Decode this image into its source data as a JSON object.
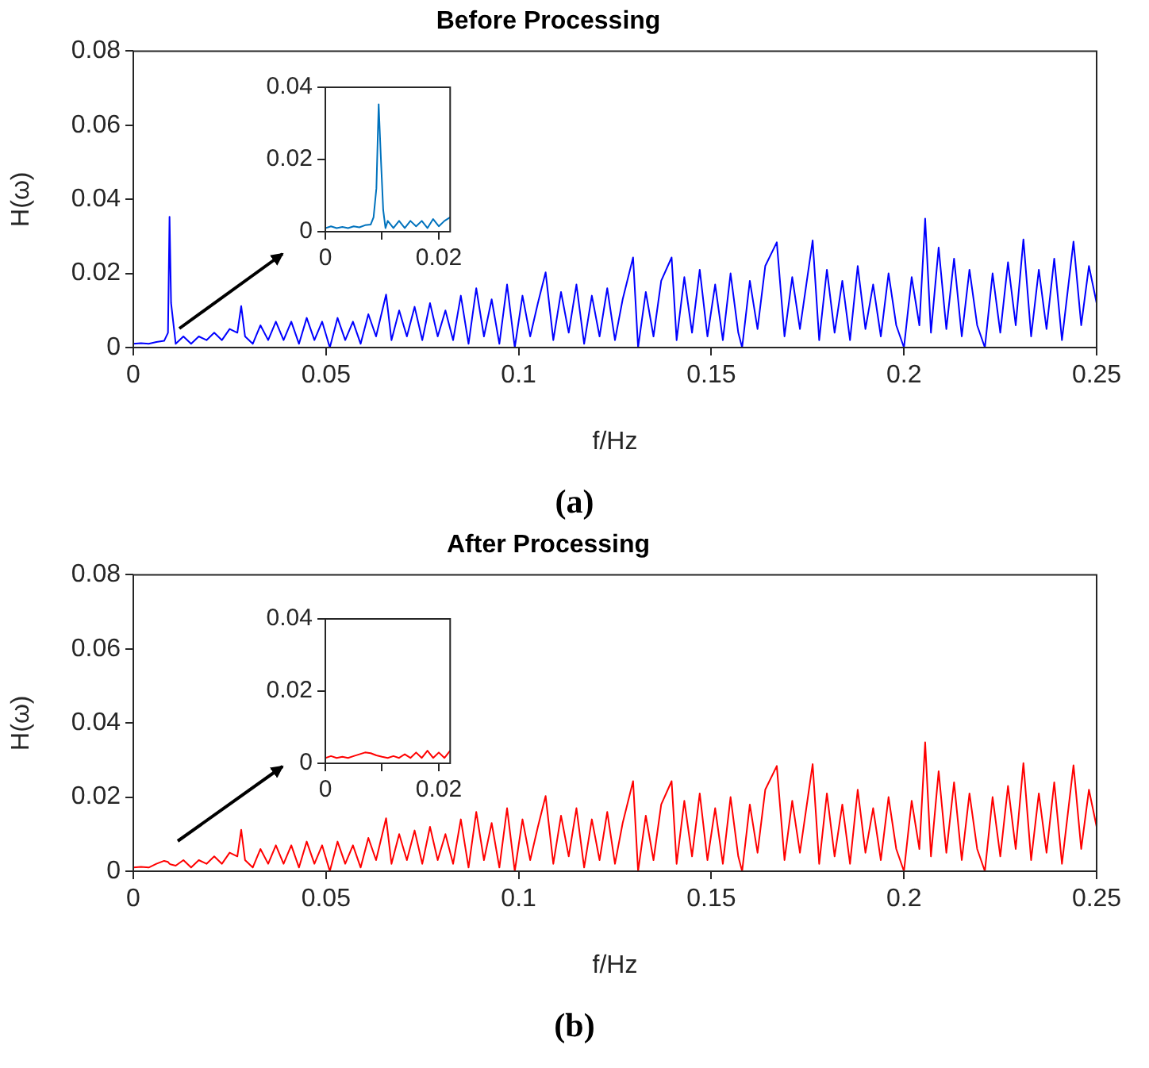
{
  "chart_data": [
    {
      "type": "line",
      "title": "Before Processing",
      "xlabel": "f/Hz",
      "ylabel": "H(ω)",
      "annotations": [
        "(a)"
      ],
      "xlim": [
        0,
        0.25
      ],
      "ylim": [
        0,
        0.08
      ],
      "xticks": [
        0,
        0.05,
        0.1,
        0.15,
        0.2,
        0.25
      ],
      "yticks": [
        0,
        0.02,
        0.04,
        0.06,
        0.08
      ],
      "x": [
        0,
        0.002,
        0.004,
        0.006,
        0.008,
        0.009,
        0.0094,
        0.0098,
        0.011,
        0.013,
        0.015,
        0.017,
        0.019,
        0.021,
        0.023,
        0.025,
        0.027,
        0.028,
        0.029,
        0.031,
        0.033,
        0.035,
        0.037,
        0.039,
        0.041,
        0.043,
        0.045,
        0.047,
        0.049,
        0.051,
        0.053,
        0.055,
        0.057,
        0.059,
        0.061,
        0.063,
        0.0656,
        0.067,
        0.069,
        0.071,
        0.073,
        0.075,
        0.077,
        0.079,
        0.081,
        0.083,
        0.085,
        0.087,
        0.089,
        0.091,
        0.093,
        0.095,
        0.097,
        0.099,
        0.101,
        0.103,
        0.105,
        0.107,
        0.109,
        0.111,
        0.113,
        0.115,
        0.117,
        0.119,
        0.121,
        0.123,
        0.125,
        0.127,
        0.1297,
        0.131,
        0.133,
        0.135,
        0.137,
        0.1397,
        0.141,
        0.143,
        0.145,
        0.147,
        0.149,
        0.151,
        0.153,
        0.155,
        0.157,
        0.158,
        0.16,
        0.162,
        0.164,
        0.167,
        0.169,
        0.171,
        0.173,
        0.1763,
        0.178,
        0.18,
        0.182,
        0.184,
        0.186,
        0.188,
        0.19,
        0.192,
        0.194,
        0.196,
        0.198,
        0.2,
        0.202,
        0.204,
        0.2055,
        0.207,
        0.209,
        0.211,
        0.213,
        0.215,
        0.217,
        0.219,
        0.221,
        0.223,
        0.225,
        0.227,
        0.229,
        0.231,
        0.233,
        0.235,
        0.237,
        0.239,
        0.241,
        0.244,
        0.246,
        0.248,
        0.249,
        0.25
      ],
      "series": [
        {
          "color": "#0000ff",
          "values": [
            0.001,
            0.0012,
            0.001,
            0.0015,
            0.0018,
            0.004,
            0.0353,
            0.012,
            0.001,
            0.003,
            0.001,
            0.003,
            0.002,
            0.004,
            0.002,
            0.005,
            0.004,
            0.0112,
            0.003,
            0.001,
            0.006,
            0.002,
            0.007,
            0.002,
            0.007,
            0.001,
            0.008,
            0.002,
            0.007,
            0,
            0.008,
            0.002,
            0.007,
            0.001,
            0.009,
            0.003,
            0.0143,
            0.002,
            0.01,
            0.003,
            0.011,
            0.002,
            0.012,
            0.003,
            0.01,
            0.002,
            0.014,
            0.001,
            0.016,
            0.003,
            0.013,
            0.001,
            0.017,
            0,
            0.014,
            0.003,
            0.012,
            0.0203,
            0.002,
            0.015,
            0.004,
            0.017,
            0.001,
            0.014,
            0.003,
            0.016,
            0.002,
            0.013,
            0.0243,
            0,
            0.015,
            0.003,
            0.018,
            0.0243,
            0.002,
            0.019,
            0.004,
            0.021,
            0.003,
            0.017,
            0.002,
            0.02,
            0.004,
            0,
            0.018,
            0.005,
            0.022,
            0.0284,
            0.003,
            0.019,
            0.005,
            0.0289,
            0.002,
            0.021,
            0.004,
            0.018,
            0.002,
            0.022,
            0.005,
            0.017,
            0.003,
            0.02,
            0.006,
            0,
            0.019,
            0.006,
            0.0348,
            0.004,
            0.027,
            0.005,
            0.024,
            0.003,
            0.021,
            0.006,
            0,
            0.02,
            0.004,
            0.023,
            0.006,
            0.0292,
            0.003,
            0.021,
            0.005,
            0.024,
            0.002,
            0.0286,
            0.006,
            0.022,
            0.017,
            0.012
          ]
        }
      ]
    },
    {
      "type": "line",
      "xlim": [
        0,
        0.022
      ],
      "ylim": [
        0,
        0.04
      ],
      "xticks": [
        0,
        {
          "value": 0.01,
          "label": null
        },
        0.02
      ],
      "yticks": [
        0,
        0.02,
        0.04
      ],
      "x": [
        0,
        0.001,
        0.002,
        0.003,
        0.004,
        0.005,
        0.006,
        0.007,
        0.008,
        0.0085,
        0.009,
        0.0094,
        0.0098,
        0.0102,
        0.0106,
        0.011,
        0.012,
        0.013,
        0.014,
        0.015,
        0.016,
        0.017,
        0.018,
        0.019,
        0.02,
        0.021,
        0.022
      ],
      "series": [
        {
          "color": "#0072bd",
          "values": [
            0.001,
            0.0015,
            0.001,
            0.0013,
            0.001,
            0.0015,
            0.0012,
            0.0018,
            0.002,
            0.004,
            0.012,
            0.0353,
            0.02,
            0.006,
            0.001,
            0.003,
            0.001,
            0.003,
            0.001,
            0.003,
            0.0015,
            0.003,
            0.001,
            0.0035,
            0.0015,
            0.003,
            0.004
          ]
        }
      ]
    },
    {
      "type": "line",
      "title": "After Processing",
      "xlabel": "f/Hz",
      "ylabel": "H(ω)",
      "annotations": [
        "(b)"
      ],
      "xlim": [
        0,
        0.25
      ],
      "ylim": [
        0,
        0.08
      ],
      "xticks": [
        0,
        0.05,
        0.1,
        0.15,
        0.2,
        0.25
      ],
      "yticks": [
        0,
        0.02,
        0.04,
        0.06,
        0.08
      ],
      "x": [
        0,
        0.002,
        0.004,
        0.006,
        0.008,
        0.009,
        0.0094,
        0.0098,
        0.011,
        0.013,
        0.015,
        0.017,
        0.019,
        0.021,
        0.023,
        0.025,
        0.027,
        0.028,
        0.029,
        0.031,
        0.033,
        0.035,
        0.037,
        0.039,
        0.041,
        0.043,
        0.045,
        0.047,
        0.049,
        0.051,
        0.053,
        0.055,
        0.057,
        0.059,
        0.061,
        0.063,
        0.0656,
        0.067,
        0.069,
        0.071,
        0.073,
        0.075,
        0.077,
        0.079,
        0.081,
        0.083,
        0.085,
        0.087,
        0.089,
        0.091,
        0.093,
        0.095,
        0.097,
        0.099,
        0.101,
        0.103,
        0.105,
        0.107,
        0.109,
        0.111,
        0.113,
        0.115,
        0.117,
        0.119,
        0.121,
        0.123,
        0.125,
        0.127,
        0.1297,
        0.131,
        0.133,
        0.135,
        0.137,
        0.1397,
        0.141,
        0.143,
        0.145,
        0.147,
        0.149,
        0.151,
        0.153,
        0.155,
        0.157,
        0.158,
        0.16,
        0.162,
        0.164,
        0.167,
        0.169,
        0.171,
        0.173,
        0.1763,
        0.178,
        0.18,
        0.182,
        0.184,
        0.186,
        0.188,
        0.19,
        0.192,
        0.194,
        0.196,
        0.198,
        0.2,
        0.202,
        0.204,
        0.2055,
        0.207,
        0.209,
        0.211,
        0.213,
        0.215,
        0.217,
        0.219,
        0.221,
        0.223,
        0.225,
        0.227,
        0.229,
        0.231,
        0.233,
        0.235,
        0.237,
        0.239,
        0.241,
        0.244,
        0.246,
        0.248,
        0.249,
        0.25
      ],
      "series": [
        {
          "color": "#ff0000",
          "values": [
            0.001,
            0.0012,
            0.001,
            0.002,
            0.0028,
            0.0025,
            0.002,
            0.0018,
            0.0015,
            0.003,
            0.001,
            0.003,
            0.002,
            0.004,
            0.002,
            0.005,
            0.004,
            0.0112,
            0.003,
            0.001,
            0.006,
            0.002,
            0.007,
            0.002,
            0.007,
            0.001,
            0.008,
            0.002,
            0.007,
            0,
            0.008,
            0.002,
            0.007,
            0.001,
            0.009,
            0.003,
            0.0143,
            0.002,
            0.01,
            0.003,
            0.011,
            0.002,
            0.012,
            0.003,
            0.01,
            0.002,
            0.014,
            0.001,
            0.016,
            0.003,
            0.013,
            0.001,
            0.017,
            0,
            0.014,
            0.003,
            0.012,
            0.0203,
            0.002,
            0.015,
            0.004,
            0.017,
            0.001,
            0.014,
            0.003,
            0.016,
            0.002,
            0.013,
            0.0243,
            0,
            0.015,
            0.003,
            0.018,
            0.0243,
            0.002,
            0.019,
            0.004,
            0.021,
            0.003,
            0.017,
            0.002,
            0.02,
            0.004,
            0,
            0.018,
            0.005,
            0.022,
            0.0284,
            0.003,
            0.019,
            0.005,
            0.0289,
            0.002,
            0.021,
            0.004,
            0.018,
            0.002,
            0.022,
            0.005,
            0.017,
            0.003,
            0.02,
            0.006,
            0,
            0.019,
            0.006,
            0.0348,
            0.004,
            0.027,
            0.005,
            0.024,
            0.003,
            0.021,
            0.006,
            0,
            0.02,
            0.004,
            0.023,
            0.006,
            0.0292,
            0.003,
            0.021,
            0.005,
            0.024,
            0.002,
            0.0286,
            0.006,
            0.022,
            0.017,
            0.012
          ]
        }
      ]
    },
    {
      "type": "line",
      "xlim": [
        0,
        0.022
      ],
      "ylim": [
        0,
        0.04
      ],
      "xticks": [
        0,
        {
          "value": 0.01,
          "label": null
        },
        0.02
      ],
      "yticks": [
        0,
        0.02,
        0.04
      ],
      "x": [
        0,
        0.001,
        0.002,
        0.003,
        0.004,
        0.005,
        0.006,
        0.007,
        0.008,
        0.009,
        0.01,
        0.011,
        0.012,
        0.013,
        0.014,
        0.015,
        0.016,
        0.017,
        0.018,
        0.019,
        0.02,
        0.021,
        0.022
      ],
      "series": [
        {
          "color": "#ff0000",
          "values": [
            0.0015,
            0.002,
            0.0015,
            0.0018,
            0.0015,
            0.002,
            0.0025,
            0.003,
            0.0028,
            0.0022,
            0.0018,
            0.0015,
            0.002,
            0.0015,
            0.0025,
            0.0015,
            0.003,
            0.0015,
            0.0035,
            0.0015,
            0.003,
            0.0015,
            0.0035
          ]
        }
      ]
    }
  ]
}
